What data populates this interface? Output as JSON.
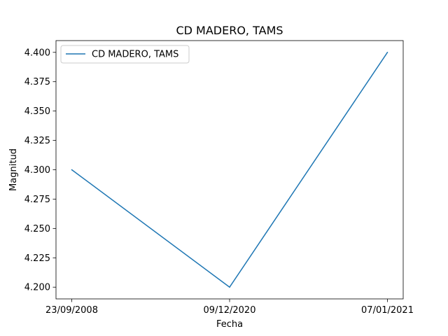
{
  "chart_data": {
    "type": "line",
    "title": "CD MADERO, TAMS",
    "xlabel": "Fecha",
    "ylabel": "Magnitud",
    "categories": [
      "23/09/2008",
      "09/12/2020",
      "07/01/2021"
    ],
    "series": [
      {
        "name": "CD MADERO, TAMS",
        "values": [
          4.3,
          4.2,
          4.4
        ],
        "color": "#1f77b4"
      }
    ],
    "ylim": [
      4.19,
      4.41
    ],
    "yticks": [
      "4.200",
      "4.225",
      "4.250",
      "4.275",
      "4.300",
      "4.325",
      "4.350",
      "4.375",
      "4.400"
    ],
    "grid": false,
    "legend_position": "top-left"
  }
}
